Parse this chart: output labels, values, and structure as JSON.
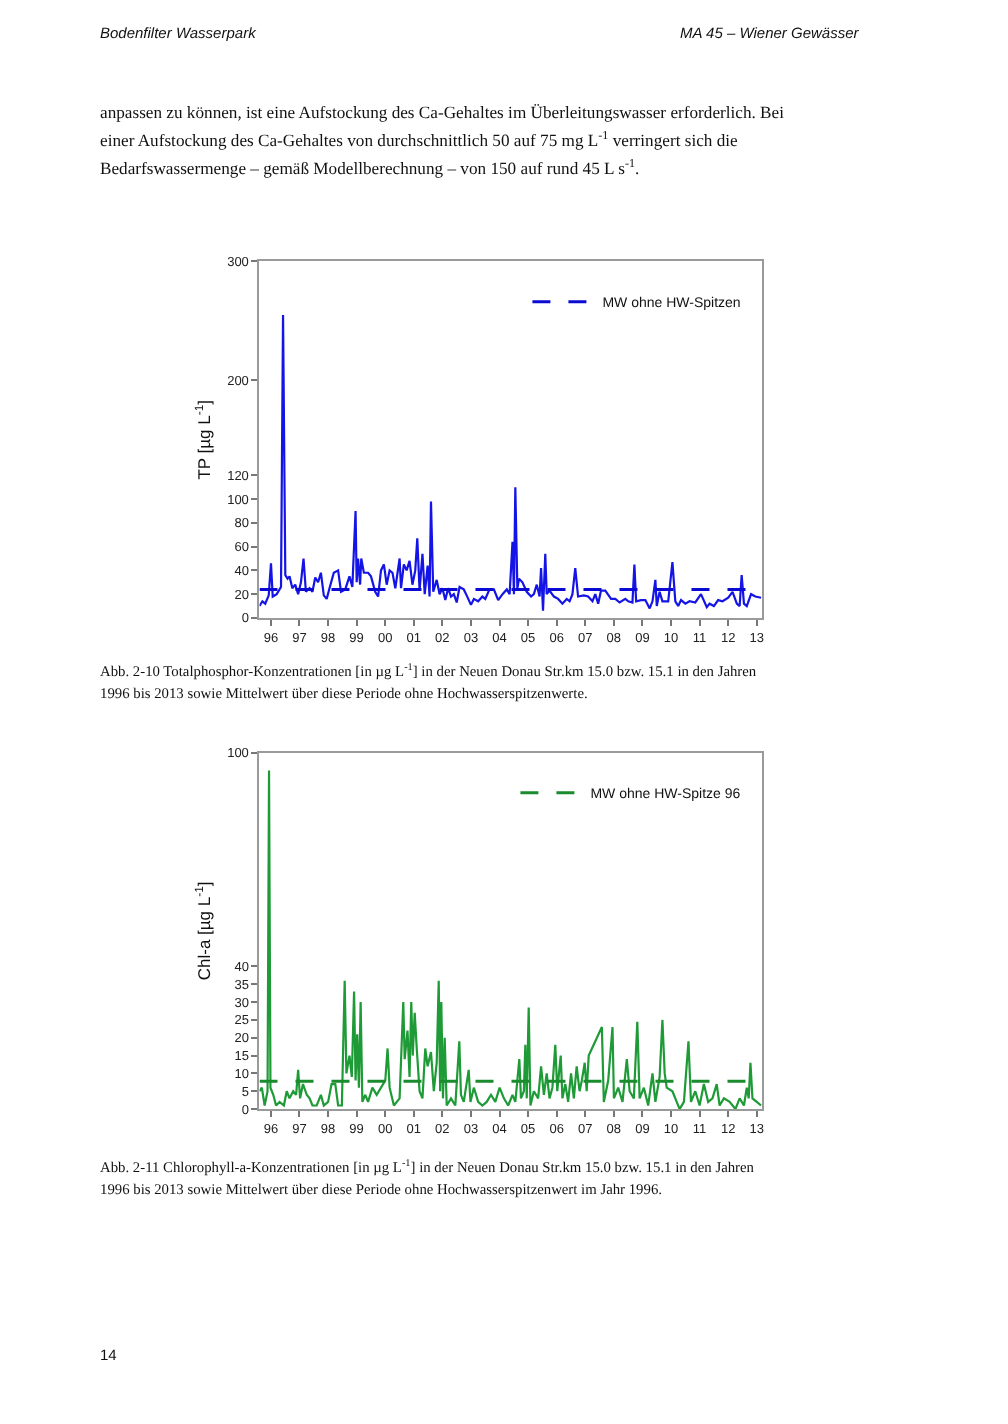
{
  "chart_data": [
    {
      "type": "line",
      "ylabel": "TP [µg L$^{-1}$]",
      "xlim": [
        "1996-02-06",
        "2013-09-13"
      ],
      "ylim": [
        0,
        300
      ],
      "xticks": [
        {
          "value": "1996-07-01",
          "label": "96"
        },
        {
          "value": "1997-07-01",
          "label": "97"
        },
        {
          "value": "1998-07-01",
          "label": "98"
        },
        {
          "value": "1999-07-01",
          "label": "99"
        },
        {
          "value": "2000-07-01",
          "label": "00"
        },
        {
          "value": "2001-07-01",
          "label": "01"
        },
        {
          "value": "2002-07-01",
          "label": "02"
        },
        {
          "value": "2003-07-01",
          "label": "03"
        },
        {
          "value": "2004-07-01",
          "label": "04"
        },
        {
          "value": "2005-07-01",
          "label": "05"
        },
        {
          "value": "2006-07-01",
          "label": "06"
        },
        {
          "value": "2007-07-01",
          "label": "07"
        },
        {
          "value": "2008-07-01",
          "label": "08"
        },
        {
          "value": "2009-07-01",
          "label": "09"
        },
        {
          "value": "2010-07-01",
          "label": "10"
        },
        {
          "value": "2011-07-01",
          "label": "11"
        },
        {
          "value": "2012-07-01",
          "label": "12"
        },
        {
          "value": "2013-07-01",
          "label": "13"
        }
      ],
      "yticks": [
        0,
        20,
        40,
        60,
        80,
        100,
        120,
        200,
        300
      ],
      "legend": "top right",
      "series": [
        {
          "color": "#1414e6",
          "x": [
            "1996-02-06",
            "1996-03-14",
            "1996-04-20",
            "1996-06-03",
            "1996-07-02",
            "1996-07-24",
            "1996-09-13",
            "1996-11-07",
            "1996-12-03",
            "1997-01-01",
            "1997-01-30",
            "1997-02-24",
            "1997-04-01",
            "1997-05-08",
            "1997-06-14",
            "1997-07-20",
            "1997-08-22",
            "1997-09-21",
            "1997-11-07",
            "1997-12-14",
            "1998-01-19",
            "1998-02-24",
            "1998-04-01",
            "1998-05-08",
            "1998-06-14",
            "1998-07-20",
            "1998-09-13",
            "1998-11-07",
            "1998-12-14",
            "1999-02-06",
            "1999-04-01",
            "1999-05-08",
            "1999-06-18",
            "1999-07-02",
            "1999-07-20",
            "1999-08-15",
            "1999-08-30",
            "1999-10-02",
            "1999-11-25",
            "2000-01-01",
            "2000-02-24",
            "2000-04-01",
            "2000-05-08",
            "2000-06-14",
            "2000-07-20",
            "2000-08-26",
            "2000-10-02",
            "2000-11-07",
            "2001-01-01",
            "2001-01-19",
            "2001-02-24",
            "2001-04-01",
            "2001-05-08",
            "2001-06-14",
            "2001-07-20",
            "2001-08-15",
            "2001-09-13",
            "2001-10-20",
            "2001-11-18",
            "2001-12-25",
            "2002-01-19",
            "2002-02-06",
            "2002-03-07",
            "2002-04-20",
            "2002-05-27",
            "2002-07-02",
            "2002-08-08",
            "2002-09-13",
            "2002-10-20",
            "2002-11-25",
            "2003-01-01",
            "2003-02-06",
            "2003-04-01",
            "2003-05-08",
            "2003-07-02",
            "2003-08-08",
            "2003-10-02",
            "2003-11-25",
            "2004-01-01",
            "2004-02-24",
            "2004-04-20",
            "2004-06-14",
            "2004-08-08",
            "2004-10-02",
            "2004-11-07",
            "2004-12-14",
            "2005-01-01",
            "2005-01-19",
            "2005-02-14",
            "2005-03-07",
            "2005-04-20",
            "2005-06-14",
            "2005-08-08",
            "2005-09-13",
            "2005-10-20",
            "2005-11-25",
            "2005-12-14",
            "2006-01-08",
            "2006-02-06",
            "2006-02-24",
            "2006-04-01",
            "2006-05-27",
            "2006-07-20",
            "2006-09-13",
            "2006-11-07",
            "2006-12-14",
            "2007-01-19",
            "2007-02-24",
            "2007-04-01",
            "2007-06-14",
            "2007-08-08",
            "2007-10-02",
            "2007-11-07",
            "2007-12-14",
            "2008-01-19",
            "2008-03-14",
            "2008-05-27",
            "2008-07-20",
            "2008-09-13",
            "2008-11-25",
            "2009-01-01",
            "2009-02-24",
            "2009-03-21",
            "2009-04-12",
            "2009-06-14",
            "2009-08-08",
            "2009-10-02",
            "2009-11-07",
            "2009-12-14",
            "2010-01-01",
            "2010-02-06",
            "2010-03-14",
            "2010-05-27",
            "2010-07-20",
            "2010-08-26",
            "2010-10-02",
            "2010-11-07",
            "2011-01-01",
            "2011-02-24",
            "2011-05-08",
            "2011-07-20",
            "2011-10-02",
            "2011-11-07",
            "2012-01-01",
            "2012-02-24",
            "2012-04-20",
            "2012-07-02",
            "2012-08-26",
            "2012-10-20",
            "2012-11-25",
            "2012-12-21",
            "2013-01-19",
            "2013-02-24",
            "2013-04-20",
            "2013-06-14",
            "2013-08-26"
          ],
          "values": [
            10,
            14,
            12,
            19,
            46,
            18,
            20,
            26,
            255,
            36,
            33,
            35,
            25,
            28,
            20,
            30,
            50,
            22,
            25,
            22,
            34,
            30,
            38,
            19,
            16,
            25,
            38,
            40,
            22,
            24,
            35,
            26,
            90,
            30,
            50,
            28,
            50,
            38,
            38,
            35,
            22,
            18,
            40,
            45,
            28,
            40,
            38,
            25,
            50,
            25,
            45,
            40,
            48,
            28,
            40,
            67,
            23,
            54,
            20,
            44,
            18,
            98,
            22,
            32,
            20,
            25,
            15,
            25,
            18,
            20,
            13,
            26,
            24,
            19,
            11,
            16,
            14,
            18,
            16,
            24,
            24,
            15,
            20,
            24,
            20,
            64,
            20,
            110,
            25,
            33,
            30,
            22,
            18,
            20,
            28,
            18,
            42,
            6,
            54,
            20,
            23,
            18,
            16,
            12,
            16,
            14,
            20,
            42,
            18,
            19,
            18,
            14,
            20,
            12,
            23,
            23,
            16,
            16,
            13,
            16,
            14,
            13,
            45,
            14,
            15,
            15,
            8,
            14,
            32,
            10,
            22,
            14,
            14,
            47,
            14,
            10,
            15,
            12,
            14,
            13,
            20,
            9,
            12,
            10,
            15,
            14,
            17,
            22,
            12,
            10,
            36,
            12,
            10,
            20,
            18,
            17
          ]
        },
        {
          "name": "MW ohne HW-Spitzen",
          "color": "#0a0ad2",
          "line_style": "dashed",
          "x": [
            "1996-02-06",
            "2013-09-13"
          ],
          "values": [
            24,
            24
          ]
        }
      ],
      "annotations": [
        "Bodenfilter Wasserpark",
        "MA 45 – Wiener Gewässer",
        "anpassen zu können, ist eine Aufstockung des Ca-Gehaltes im Überleitungswasser erforderlich. Bei",
        "einer Aufstockung des Ca-Gehaltes von durchschnittlich 50 auf 75 mg L$^{-1}$ verringert sich die",
        "Bedarfswassermenge – gemäß Modellberechnung – von 150 auf rund 45 L s$^{-1}$.",
        "Abb. 2-10 Totalphosphor-Konzentrationen [in µg L$^{-1}$] in der Neuen Donau Str.km 15.0 bzw. 15.1 in den Jahren",
        "1996 bis 2013 sowie Mittelwert über diese Periode ohne Hochwasserspitzenwerte."
      ]
    },
    {
      "type": "line",
      "ylabel": "Chl-a [µg L$^{-1}$]",
      "xlim": [
        "1996-02-06",
        "2013-09-13"
      ],
      "ylim": [
        0,
        100
      ],
      "xticks": [
        {
          "value": "1996-07-01",
          "label": "96"
        },
        {
          "value": "1997-07-01",
          "label": "97"
        },
        {
          "value": "1998-07-01",
          "label": "98"
        },
        {
          "value": "1999-07-01",
          "label": "99"
        },
        {
          "value": "2000-07-01",
          "label": "00"
        },
        {
          "value": "2001-07-01",
          "label": "01"
        },
        {
          "value": "2002-07-01",
          "label": "02"
        },
        {
          "value": "2003-07-01",
          "label": "03"
        },
        {
          "value": "2004-07-01",
          "label": "04"
        },
        {
          "value": "2005-07-01",
          "label": "05"
        },
        {
          "value": "2006-07-01",
          "label": "06"
        },
        {
          "value": "2007-07-01",
          "label": "07"
        },
        {
          "value": "2008-07-01",
          "label": "08"
        },
        {
          "value": "2009-07-01",
          "label": "09"
        },
        {
          "value": "2010-07-01",
          "label": "10"
        },
        {
          "value": "2011-07-01",
          "label": "11"
        },
        {
          "value": "2012-07-01",
          "label": "12"
        },
        {
          "value": "2013-07-01",
          "label": "13"
        }
      ],
      "yticks": [
        0,
        5,
        10,
        15,
        20,
        25,
        30,
        35,
        40,
        100
      ],
      "legend": "top right",
      "series": [
        {
          "color": "#1e9a36",
          "x": [
            "1996-02-06",
            "1996-03-07",
            "1996-04-12",
            "1996-05-19",
            "1996-06-07",
            "1996-06-25",
            "1996-07-31",
            "1996-09-05",
            "1996-10-20",
            "1996-12-14",
            "1997-01-19",
            "1997-02-24",
            "1997-04-12",
            "1997-05-19",
            "1997-06-14",
            "1997-07-09",
            "1997-08-15",
            "1997-10-02",
            "1997-11-07",
            "1997-12-14",
            "1998-02-06",
            "1998-04-01",
            "1998-05-08",
            "1998-07-02",
            "1998-08-15",
            "1998-10-02",
            "1998-11-07",
            "1998-12-25",
            "1999-01-30",
            "1999-02-21",
            "1999-04-01",
            "1999-05-01",
            "1999-05-30",
            "1999-06-18",
            "1999-07-09",
            "1999-07-31",
            "1999-08-22",
            "1999-09-13",
            "1999-10-20",
            "1999-11-25",
            "2000-01-19",
            "2000-03-14",
            "2000-05-08",
            "2000-07-02",
            "2000-07-31",
            "2000-08-26",
            "2000-10-20",
            "2001-01-01",
            "2001-02-17",
            "2001-03-07",
            "2001-04-12",
            "2001-05-08",
            "2001-05-30",
            "2001-06-18",
            "2001-07-13",
            "2001-08-08",
            "2001-09-13",
            "2001-10-20",
            "2001-11-25",
            "2001-12-25",
            "2002-02-06",
            "2002-03-14",
            "2002-04-20",
            "2002-05-16",
            "2002-06-03",
            "2002-06-18",
            "2002-07-09",
            "2002-07-31",
            "2002-08-26",
            "2002-10-20",
            "2002-12-14",
            "2003-02-03",
            "2003-02-24",
            "2003-04-01",
            "2003-06-03",
            "2003-06-25",
            "2003-08-08",
            "2003-10-02",
            "2003-11-25",
            "2004-01-19",
            "2004-03-14",
            "2004-05-08",
            "2004-07-02",
            "2004-08-26",
            "2004-10-20",
            "2004-12-14",
            "2005-01-19",
            "2005-03-11",
            "2005-04-01",
            "2005-05-08",
            "2005-05-27",
            "2005-06-14",
            "2005-07-09",
            "2005-07-31",
            "2005-09-13",
            "2005-11-07",
            "2005-12-14",
            "2006-01-19",
            "2006-02-24",
            "2006-04-01",
            "2006-05-08",
            "2006-06-14",
            "2006-07-09",
            "2006-08-22",
            "2006-09-13",
            "2006-10-20",
            "2006-11-25",
            "2007-01-01",
            "2007-02-06",
            "2007-03-14",
            "2007-04-20",
            "2007-05-19",
            "2007-06-25",
            "2007-07-20",
            "2007-08-15",
            "2008-01-30",
            "2008-02-24",
            "2008-04-20",
            "2008-06-14",
            "2008-07-02",
            "2008-08-26",
            "2008-10-20",
            "2008-12-14",
            "2009-01-19",
            "2009-03-14",
            "2009-04-27",
            "2009-05-27",
            "2009-07-20",
            "2009-09-13",
            "2009-11-07",
            "2009-12-14",
            "2010-02-06",
            "2010-03-14",
            "2010-04-12",
            "2010-05-08",
            "2010-07-20",
            "2010-10-20",
            "2010-12-14",
            "2011-02-10",
            "2011-03-14",
            "2011-05-08",
            "2011-07-02",
            "2011-08-26",
            "2011-10-20",
            "2011-12-14",
            "2012-02-06",
            "2012-03-14",
            "2012-05-08",
            "2012-07-20",
            "2012-10-02",
            "2012-11-25",
            "2013-01-19",
            "2013-02-24",
            "2013-03-21",
            "2013-04-12",
            "2013-05-08",
            "2013-07-02",
            "2013-08-26"
          ],
          "values": [
            5,
            6,
            1,
            5,
            95,
            6,
            4,
            1,
            2,
            1,
            5,
            3,
            5,
            4,
            11,
            3,
            7,
            4,
            3,
            1,
            1,
            4,
            1,
            2,
            7,
            7,
            1,
            1,
            36,
            10,
            15,
            9,
            33,
            8,
            21,
            6,
            30,
            2,
            4,
            2,
            6,
            4,
            6,
            8,
            17,
            6,
            1,
            3,
            30,
            14,
            22,
            9,
            30,
            15,
            27,
            17,
            5,
            3,
            17,
            12,
            16,
            5,
            13,
            36,
            5,
            30,
            3,
            20,
            1,
            3,
            1,
            19,
            4,
            2,
            11,
            2,
            6,
            2,
            1,
            2,
            4,
            2,
            6,
            3,
            1,
            4,
            2,
            14,
            3,
            5,
            18,
            3,
            28.5,
            1,
            5,
            3,
            12,
            4,
            10,
            3,
            6,
            18,
            5,
            15,
            3,
            7,
            2,
            10,
            3,
            12,
            5,
            8,
            13,
            5,
            15,
            23,
            2,
            8,
            23,
            3,
            6,
            2,
            14,
            5,
            3,
            24.5,
            3,
            6,
            1,
            10,
            2,
            9,
            25,
            10,
            6,
            5,
            0,
            2,
            19,
            2,
            5,
            1,
            7,
            2,
            3,
            7,
            1,
            3,
            2,
            0,
            3,
            1,
            6,
            3,
            13,
            3,
            2,
            1
          ]
        },
        {
          "name": "MW ohne HW-Spitze 96",
          "color": "#1a8c2e",
          "line_style": "dashed",
          "x": [
            "1996-02-06",
            "2013-09-13"
          ],
          "values": [
            7.8,
            7.8
          ]
        }
      ],
      "annotations": [
        "Abb. 2-11 Chlorophyll-a-Konzentrationen [in µg L$^{-1}$] in der Neuen Donau Str.km 15.0 bzw. 15.1 in den Jahren",
        "1996 bis 2013 sowie Mittelwert über diese Periode ohne Hochwasserspitzenwert im Jahr 1996.",
        "14"
      ]
    }
  ]
}
